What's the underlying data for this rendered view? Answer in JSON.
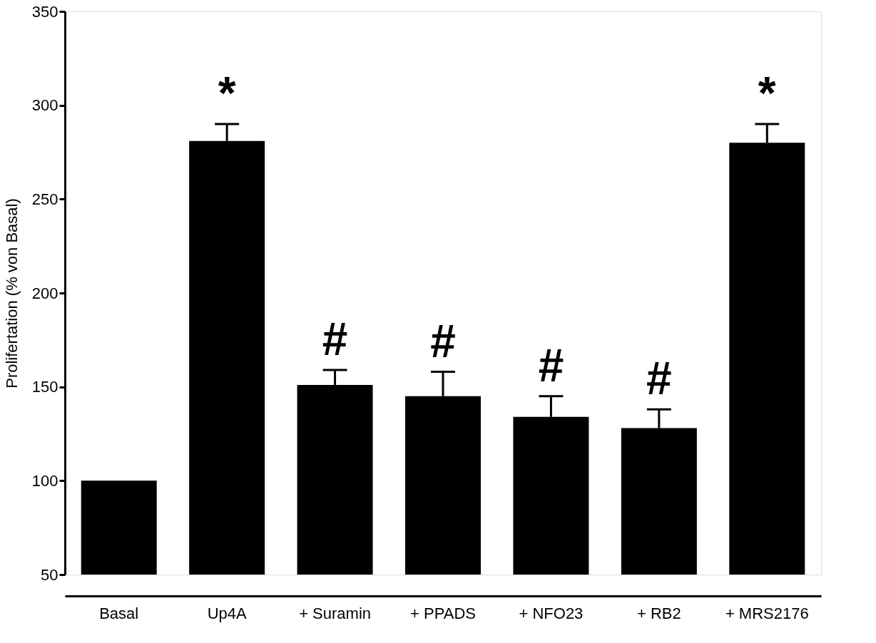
{
  "chart_data": {
    "type": "bar",
    "ylabel": "Prolifertation (% von Basal)",
    "categories": [
      "Basal",
      "Up4A",
      "+ Suramin",
      "+ PPADS",
      "+ NFO23",
      "+ RB2",
      "+ MRS2176"
    ],
    "values": [
      100,
      281,
      151,
      145,
      134,
      128,
      280
    ],
    "errors": [
      null,
      [
        281,
        290
      ],
      [
        151,
        159
      ],
      [
        145,
        158
      ],
      [
        134,
        145
      ],
      [
        128,
        138
      ],
      [
        280,
        290
      ]
    ],
    "color": "#000000",
    "ylim": [
      50,
      350
    ],
    "yticks": [
      50,
      100,
      150,
      200,
      250,
      300,
      350
    ],
    "grid": false,
    "annotations": [
      {
        "text": "*",
        "x": "Up4A",
        "y": 290
      },
      {
        "text": "#",
        "x": "+ Suramin",
        "y": 159
      },
      {
        "text": "#",
        "x": "+ PPADS",
        "y": 158
      },
      {
        "text": "#",
        "x": "+ NFO23",
        "y": 145
      },
      {
        "text": "#",
        "x": "+ RB2",
        "y": 138
      },
      {
        "text": "*",
        "x": "+ MRS2176",
        "y": 290
      }
    ]
  }
}
